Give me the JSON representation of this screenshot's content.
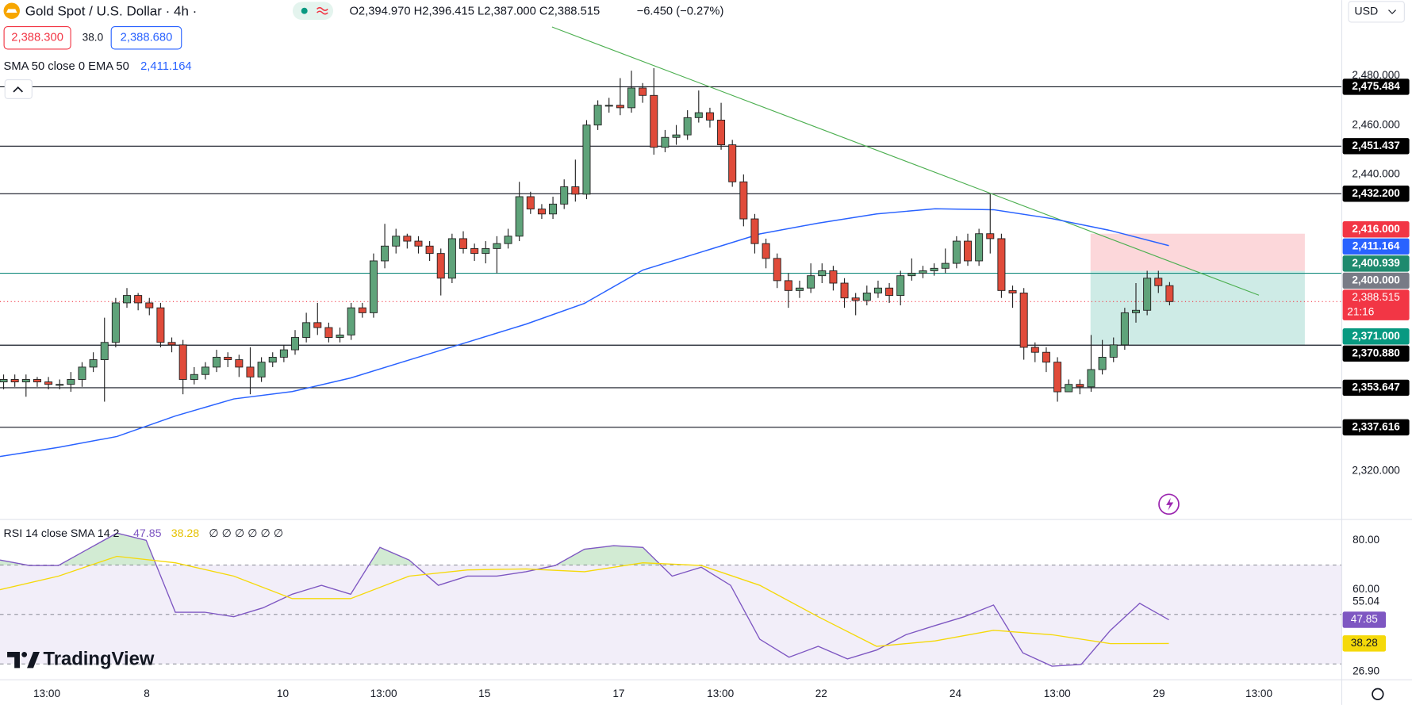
{
  "header": {
    "symbol": "Gold Spot / U.S. Dollar · 4h ·",
    "ohlc": "O2,394.970 H2,396.415 L2,387.000 C2,388.515",
    "change": "−6.450 (−0.27%)",
    "sell": "2,388.300",
    "spread": "38.0",
    "buy": "2,388.680",
    "indicator": "SMA 50 close 0 EMA 50",
    "indicator_value": "2,411.164",
    "currency": "USD",
    "logo": "TradingView"
  },
  "chart_data": [
    {
      "type": "candlestick",
      "up_color": "#5fa37a",
      "down_color": "#e04b3a",
      "open": [
        2356,
        2357,
        2356,
        2357,
        2356,
        2355,
        2355,
        2357,
        2362,
        2365,
        2372,
        2388,
        2391,
        2388,
        2386,
        2372,
        2371,
        2357,
        2359,
        2362,
        2366,
        2365,
        2362,
        2358,
        2364,
        2366,
        2369,
        2374,
        2380,
        2378,
        2374,
        2375,
        2386,
        2384,
        2405,
        2411,
        2415,
        2413,
        2411,
        2408,
        2398,
        2414,
        2410,
        2408,
        2410,
        2412,
        2415,
        2431,
        2426,
        2424,
        2428,
        2435,
        2432,
        2460,
        2468,
        2468,
        2467,
        2475,
        2472,
        2451,
        2455,
        2456,
        2463,
        2465,
        2462,
        2452,
        2437,
        2422,
        2412,
        2406,
        2397,
        2393,
        2394,
        2399,
        2401,
        2396,
        2390,
        2389,
        2392,
        2394,
        2391,
        2399,
        2400,
        2401,
        2402,
        2404,
        2413,
        2405,
        2416,
        2414,
        2393,
        2392,
        2370,
        2368,
        2364,
        2352,
        2355,
        2354,
        2361,
        2366,
        2371,
        2384,
        2385,
        2398,
        2394.97
      ],
      "high": [
        2359,
        2359,
        2359,
        2358,
        2358,
        2357,
        2360,
        2364,
        2368,
        2382,
        2390,
        2394,
        2392,
        2390,
        2388,
        2374,
        2373,
        2362,
        2364,
        2369,
        2368,
        2367,
        2370,
        2366,
        2368,
        2371,
        2377,
        2384,
        2388,
        2380,
        2378,
        2388,
        2388,
        2408,
        2420,
        2418,
        2416,
        2415,
        2413,
        2410,
        2416,
        2417,
        2412,
        2413,
        2415,
        2418,
        2437,
        2433,
        2428,
        2431,
        2438,
        2446,
        2462,
        2470,
        2471,
        2479,
        2482,
        2477,
        2483,
        2458,
        2460,
        2466,
        2474,
        2467,
        2469,
        2454,
        2440,
        2424,
        2414,
        2408,
        2400,
        2397,
        2404,
        2404,
        2403,
        2398,
        2392,
        2395,
        2397,
        2396,
        2401,
        2406,
        2403,
        2404,
        2410,
        2415,
        2416,
        2418,
        2432,
        2416,
        2395,
        2394,
        2372,
        2370,
        2366,
        2357,
        2357,
        2375,
        2373,
        2374,
        2386,
        2396,
        2401,
        2401,
        2396.415
      ],
      "low": [
        2353,
        2354,
        2350,
        2354,
        2353,
        2353,
        2352,
        2354,
        2360,
        2348,
        2370,
        2386,
        2385,
        2383,
        2370,
        2368,
        2351,
        2355,
        2357,
        2360,
        2362,
        2358,
        2351,
        2356,
        2362,
        2364,
        2367,
        2372,
        2375,
        2372,
        2372,
        2373,
        2382,
        2382,
        2402,
        2408,
        2410,
        2408,
        2405,
        2391,
        2396,
        2408,
        2405,
        2404,
        2400,
        2410,
        2413,
        2424,
        2422,
        2422,
        2426,
        2429,
        2430,
        2458,
        2465,
        2464,
        2465,
        2469,
        2448,
        2449,
        2452,
        2454,
        2461,
        2459,
        2450,
        2435,
        2419,
        2408,
        2402,
        2394,
        2386,
        2390,
        2392,
        2396,
        2393,
        2386,
        2383,
        2387,
        2390,
        2388,
        2387,
        2397,
        2398,
        2399,
        2400,
        2402,
        2403,
        2403,
        2408,
        2390,
        2386,
        2365,
        2364,
        2360,
        2348,
        2353,
        2351,
        2352,
        2359,
        2364,
        2369,
        2380,
        2383,
        2392,
        2387
      ],
      "close": [
        2357,
        2356,
        2357,
        2356,
        2355,
        2355,
        2357,
        2362,
        2365,
        2372,
        2388,
        2391,
        2388,
        2386,
        2372,
        2371,
        2357,
        2359,
        2362,
        2366,
        2365,
        2362,
        2358,
        2364,
        2366,
        2369,
        2374,
        2380,
        2378,
        2374,
        2375,
        2386,
        2384,
        2405,
        2411,
        2415,
        2413,
        2411,
        2408,
        2398,
        2414,
        2410,
        2408,
        2410,
        2412,
        2415,
        2431,
        2426,
        2424,
        2428,
        2435,
        2432,
        2460,
        2468,
        2468,
        2467,
        2475,
        2472,
        2451,
        2455,
        2456,
        2463,
        2465,
        2462,
        2452,
        2437,
        2422,
        2412,
        2406,
        2397,
        2393,
        2394,
        2399,
        2401,
        2396,
        2390,
        2389,
        2392,
        2394,
        2391,
        2399,
        2400,
        2401,
        2402,
        2404,
        2413,
        2405,
        2416,
        2414,
        2393,
        2392,
        2370,
        2368,
        2364,
        2352,
        2355,
        2354,
        2361,
        2366,
        2371,
        2384,
        2385,
        2398,
        2394.97,
        2388.515
      ],
      "xticks": [
        "13:00",
        "8",
        "10",
        "13:00",
        "15",
        "17",
        "13:00",
        "22",
        "24",
        "13:00",
        "29",
        "13:00"
      ],
      "ylim": [
        2300.3,
        2510.6
      ],
      "yticks": [
        {
          "value": 2480,
          "label": "2,480.000"
        },
        {
          "value": 2460,
          "label": "2,460.000"
        },
        {
          "value": 2440,
          "label": "2,440.000"
        },
        {
          "value": 2320,
          "label": "2,320.000"
        }
      ],
      "price_lines": [
        {
          "value": 2475.484,
          "label": "2,475.484",
          "line_color": "#131722",
          "box_color": "#000000"
        },
        {
          "value": 2451.437,
          "label": "2,451.437",
          "line_color": "#131722",
          "box_color": "#000000"
        },
        {
          "value": 2432.2,
          "label": "2,432.200",
          "line_color": "#131722",
          "box_color": "#000000"
        },
        {
          "value": 2400,
          "label": "2,400.000",
          "line_color": "#138a7c",
          "box_color": "#787b86"
        },
        {
          "value": 2370.88,
          "label": "2,370.880",
          "line_color": "#131722",
          "box_color": "#000000"
        },
        {
          "value": 2353.647,
          "label": "2,353.647",
          "line_color": "#131722",
          "box_color": "#000000"
        },
        {
          "value": 2337.616,
          "label": "2,337.616",
          "line_color": "#131722",
          "box_color": "#000000"
        }
      ],
      "position": {
        "stop": {
          "value": 2416,
          "label": "2,416.000"
        },
        "entry": {
          "value": 2400.939,
          "label": "2,400.939"
        },
        "target": {
          "value": 2371,
          "label": "2,371.000"
        }
      },
      "last_price": {
        "value": 2388.515,
        "label": "2,388.515",
        "countdown": "21:16"
      },
      "trendline": [
        2499.7,
        2391.1
      ],
      "ema": {
        "color": "#2962ff",
        "values": [
          2325.8,
          2329.5,
          2333.9,
          2342.2,
          2349.1,
          2352.1,
          2357.6,
          2364.9,
          2372.1,
          2379.4,
          2387.8,
          2401.3,
          2408.6,
          2415.9,
          2420.3,
          2424.0,
          2426.1,
          2425.7,
          2422.1,
          2417.3,
          2411.164
        ],
        "last": {
          "value": 2411.164,
          "label": "2,411.164"
        }
      }
    },
    {
      "type": "line",
      "title": "RSI 14 close SMA 14 2",
      "nulls": "∅ ∅ ∅ ∅ ∅ ∅",
      "ylim": [
        23.6,
        88.4
      ],
      "yticks": [
        {
          "value": 80,
          "label": "80.00"
        },
        {
          "value": 60,
          "label": "60.00"
        },
        {
          "value": 26.9,
          "label": "26.90"
        }
      ],
      "levels": [
        70,
        50,
        30
      ],
      "marker": 55.04,
      "series": [
        {
          "color": "#7e57c2",
          "values": [
            72.0,
            69.8,
            69.8,
            76.4,
            82.9,
            80.0,
            50.9,
            50.9,
            49.1,
            52.7,
            58.2,
            61.8,
            58.2,
            77.1,
            72.0,
            61.8,
            65.5,
            65.5,
            67.3,
            69.8,
            76.4,
            77.8,
            77.1,
            65.5,
            69.1,
            61.8,
            40.0,
            32.7,
            37.1,
            32.0,
            35.6,
            41.8,
            45.5,
            49.1,
            53.8,
            34.5,
            29.1,
            29.8,
            43.6,
            54.5,
            47.85
          ]
        },
        {
          "color": "#f5d90a",
          "values": [
            60.0,
            65.5,
            73.5,
            70.9,
            65.5,
            56.4,
            56.4,
            65.5,
            68.0,
            68.4,
            67.3,
            70.9,
            69.8,
            61.8,
            49.1,
            37.1,
            39.3,
            43.6,
            41.8,
            38.2,
            38.28
          ]
        }
      ]
    }
  ]
}
